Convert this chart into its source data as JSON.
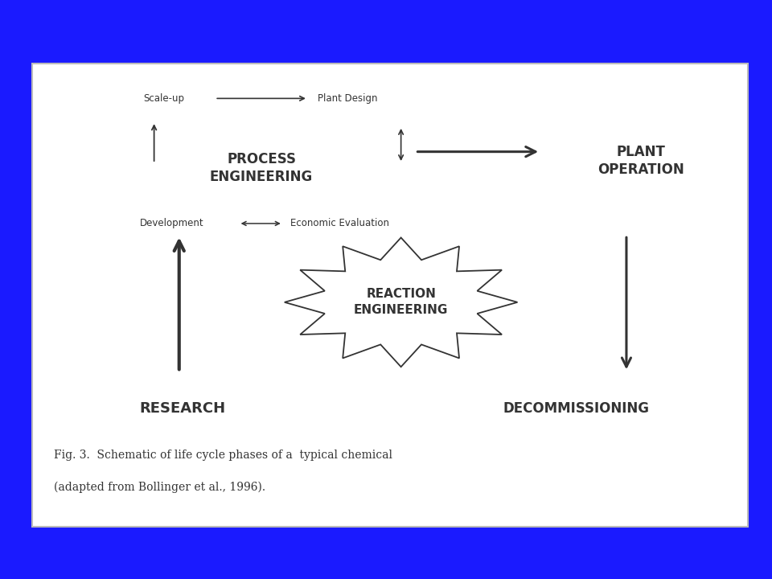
{
  "bg_color": "#1a1aff",
  "panel_color": "#ffffff",
  "text_color": "#333333",
  "title": "PROCESS\nENGINEERING",
  "plant_op": "PLANT\nOPERATION",
  "reaction_eng": "REACTION\nENGINEERING",
  "research": "RESEARCH",
  "decommissioning": "DECOMMISSIONING",
  "scale_up": "Scale-up",
  "plant_design": "Plant Design",
  "development": "Development",
  "economic_eval": "Economic Evaluation",
  "caption_line1": "Fig. 3.  Schematic of life cycle phases of a  typical chemical",
  "caption_line2": "(adapted from Bollinger et al., 1996).",
  "figsize": [
    9.6,
    7.2
  ],
  "dpi": 100
}
